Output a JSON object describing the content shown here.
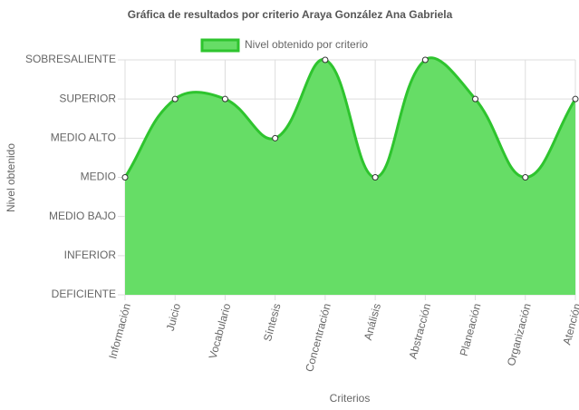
{
  "chart_data": {
    "type": "line",
    "title": "Gráfica de resultados por criterio Araya González Ana Gabriela",
    "x_label": "Criterios",
    "y_label": "Nivel obtenido",
    "categories": [
      "Información",
      "Juicio",
      "Vocabulario",
      "Síntesis",
      "Concentración",
      "Análisis",
      "Abstracción",
      "Planeación",
      "Organización",
      "Atención"
    ],
    "series": [
      {
        "name": "Nivel obtenido por criterio",
        "color": "#2ec42e",
        "fill": "#66dd66",
        "values": [
          3,
          5,
          5,
          4,
          6,
          3,
          6,
          5,
          3,
          5
        ]
      }
    ],
    "ylim": [
      0,
      6
    ],
    "yticks": [
      {
        "value": 0,
        "label": "DEFICIENTE"
      },
      {
        "value": 1,
        "label": "INFERIOR"
      },
      {
        "value": 2,
        "label": "MEDIO BAJO"
      },
      {
        "value": 3,
        "label": "MEDIO"
      },
      {
        "value": 4,
        "label": "MEDIO ALTO"
      },
      {
        "value": 5,
        "label": "SUPERIOR"
      },
      {
        "value": 6,
        "label": "SOBRESALIENTE"
      }
    ],
    "grid": true,
    "legend": "top"
  }
}
